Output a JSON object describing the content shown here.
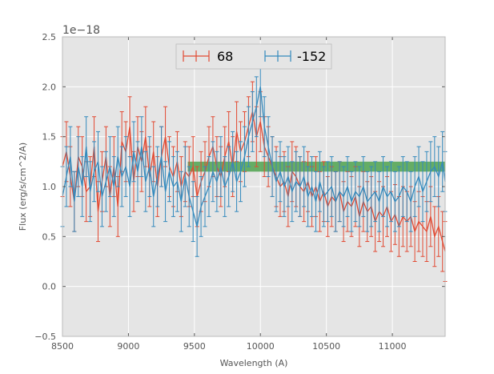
{
  "chart_data": {
    "type": "line",
    "title": "",
    "xlabel": "Wavelength (A)",
    "ylabel": "Flux (erg/s/cm^2/A)",
    "offset_text": "1e−18",
    "xlim": [
      8500,
      11400
    ],
    "ylim": [
      -0.5,
      2.5
    ],
    "xticks": [
      8500,
      9000,
      9500,
      10000,
      10500,
      11000
    ],
    "xtick_labels": [
      "8500",
      "9000",
      "9500",
      "10000",
      "10500",
      "11000"
    ],
    "yticks": [
      -0.5,
      0.0,
      0.5,
      1.0,
      1.5,
      2.0,
      2.5
    ],
    "ytick_labels": [
      "−0.5",
      "0.0",
      "0.5",
      "1.0",
      "1.5",
      "2.0",
      "2.5"
    ],
    "grid": true,
    "legend_position": "upper-center",
    "band": {
      "x": [
        9450,
        11400
      ],
      "y": [
        1.15,
        1.25
      ],
      "color": "#4fa34f"
    },
    "series": [
      {
        "name": "68",
        "color": "#e24a33",
        "x": [
          8500,
          8530,
          8560,
          8590,
          8620,
          8650,
          8680,
          8710,
          8740,
          8770,
          8800,
          8830,
          8860,
          8890,
          8920,
          8950,
          8980,
          9010,
          9040,
          9070,
          9100,
          9130,
          9160,
          9190,
          9220,
          9250,
          9280,
          9310,
          9340,
          9370,
          9400,
          9430,
          9460,
          9490,
          9520,
          9550,
          9580,
          9610,
          9640,
          9670,
          9700,
          9730,
          9760,
          9790,
          9820,
          9850,
          9880,
          9910,
          9940,
          9970,
          10000,
          10030,
          10060,
          10090,
          10120,
          10150,
          10180,
          10210,
          10240,
          10270,
          10300,
          10330,
          10360,
          10390,
          10420,
          10450,
          10480,
          10510,
          10540,
          10570,
          10600,
          10630,
          10660,
          10690,
          10720,
          10750,
          10780,
          10810,
          10840,
          10870,
          10900,
          10930,
          10960,
          10990,
          11020,
          11050,
          11080,
          11110,
          11140,
          11170,
          11200,
          11230,
          11260,
          11290,
          11320,
          11350,
          11380,
          11400
        ],
        "y": [
          1.2,
          1.35,
          1.1,
          0.85,
          1.3,
          1.2,
          0.95,
          1.0,
          1.4,
          0.75,
          1.05,
          1.3,
          0.9,
          1.2,
          0.8,
          1.45,
          1.35,
          1.6,
          1.05,
          1.4,
          1.25,
          1.5,
          1.1,
          1.35,
          1.0,
          1.3,
          1.5,
          1.2,
          1.1,
          1.25,
          1.0,
          1.15,
          1.1,
          1.2,
          0.9,
          1.05,
          1.15,
          1.3,
          1.4,
          1.2,
          1.1,
          1.3,
          1.45,
          1.2,
          1.55,
          1.35,
          1.45,
          1.6,
          1.75,
          1.5,
          1.65,
          1.4,
          1.3,
          1.2,
          1.1,
          1.0,
          1.05,
          0.9,
          1.15,
          1.1,
          1.0,
          0.95,
          1.05,
          0.9,
          1.0,
          0.85,
          0.95,
          0.8,
          0.9,
          0.85,
          0.95,
          0.75,
          0.85,
          0.8,
          0.9,
          0.7,
          0.85,
          0.75,
          0.8,
          0.65,
          0.75,
          0.7,
          0.8,
          0.65,
          0.72,
          0.6,
          0.7,
          0.65,
          0.7,
          0.55,
          0.65,
          0.6,
          0.55,
          0.7,
          0.5,
          0.6,
          0.45,
          0.35
        ],
        "err": 0.3
      },
      {
        "name": "-152",
        "color": "#348abd",
        "x": [
          8500,
          8530,
          8560,
          8590,
          8620,
          8650,
          8680,
          8710,
          8740,
          8770,
          8800,
          8830,
          8860,
          8890,
          8920,
          8950,
          8980,
          9010,
          9040,
          9070,
          9100,
          9130,
          9160,
          9190,
          9220,
          9250,
          9280,
          9310,
          9340,
          9370,
          9400,
          9430,
          9460,
          9490,
          9520,
          9550,
          9580,
          9610,
          9640,
          9670,
          9700,
          9730,
          9760,
          9790,
          9820,
          9850,
          9880,
          9910,
          9940,
          9970,
          10000,
          10030,
          10060,
          10090,
          10120,
          10150,
          10180,
          10210,
          10240,
          10270,
          10300,
          10330,
          10360,
          10390,
          10420,
          10450,
          10480,
          10510,
          10540,
          10570,
          10600,
          10630,
          10660,
          10690,
          10720,
          10750,
          10780,
          10810,
          10840,
          10870,
          10900,
          10930,
          10960,
          10990,
          11020,
          11050,
          11080,
          11110,
          11140,
          11170,
          11200,
          11230,
          11260,
          11290,
          11320,
          11350,
          11380,
          11400
        ],
        "y": [
          0.9,
          1.1,
          1.3,
          0.85,
          1.2,
          1.0,
          1.4,
          0.95,
          1.15,
          1.25,
          0.9,
          1.05,
          1.2,
          1.0,
          1.3,
          1.1,
          1.2,
          1.0,
          1.35,
          1.15,
          1.4,
          1.05,
          1.2,
          0.9,
          1.1,
          1.3,
          0.95,
          1.15,
          1.0,
          1.05,
          0.85,
          1.1,
          0.9,
          0.75,
          0.6,
          0.8,
          0.9,
          1.0,
          1.15,
          1.05,
          1.2,
          1.0,
          1.1,
          1.25,
          1.05,
          1.15,
          1.3,
          1.5,
          1.65,
          1.8,
          2.0,
          1.6,
          1.4,
          1.2,
          1.05,
          1.15,
          1.0,
          1.1,
          0.95,
          1.05,
          1.0,
          1.1,
          0.9,
          1.0,
          0.85,
          1.05,
          0.9,
          0.95,
          1.0,
          0.85,
          0.95,
          0.9,
          1.0,
          0.85,
          0.95,
          0.9,
          1.0,
          0.85,
          0.9,
          0.95,
          0.85,
          1.0,
          0.9,
          0.95,
          0.85,
          0.9,
          1.0,
          0.95,
          0.85,
          1.0,
          1.1,
          0.95,
          1.05,
          1.15,
          1.2,
          1.1,
          1.25,
          1.05
        ],
        "err": 0.3
      }
    ]
  }
}
